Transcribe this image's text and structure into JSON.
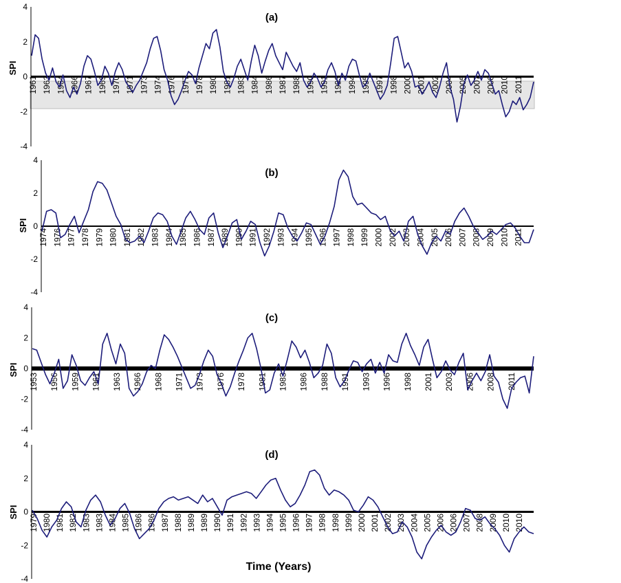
{
  "figure": {
    "xlabel": "Time (Years)"
  },
  "chart_data": [
    {
      "type": "line",
      "title": "(a)",
      "ylabel": "SPI",
      "ylim": [
        -4,
        4
      ],
      "yticks": [
        "4",
        "2",
        "0",
        "-2",
        "-4"
      ],
      "year_labels": [
        "1961",
        "1963",
        "1964",
        "1966",
        "1967",
        "1969",
        "1970",
        "1971",
        "1973",
        "1974",
        "1976",
        "1977",
        "1978",
        "1980",
        "1981",
        "1983",
        "1984",
        "1986",
        "1987",
        "1988",
        "1990",
        "1991",
        "1993",
        "1994",
        "1995",
        "1997",
        "1998",
        "2000",
        "2001",
        "2002",
        "2004",
        "2005",
        "2007",
        "2008",
        "2010",
        "2011"
      ],
      "line_color": "#1c1c7a",
      "values": [
        1.2,
        2.4,
        2.2,
        1.0,
        0.2,
        -0.2,
        0.5,
        -0.3,
        -0.6,
        0.1,
        -0.8,
        -1.2,
        -0.6,
        -1.0,
        -0.4,
        0.6,
        1.2,
        1.0,
        0.3,
        -0.5,
        -0.2,
        0.6,
        0.2,
        -0.5,
        0.3,
        0.8,
        0.4,
        -0.3,
        -0.6,
        -0.9,
        -0.5,
        -0.2,
        0.3,
        0.8,
        1.6,
        2.2,
        2.3,
        1.5,
        0.4,
        -0.2,
        -1.1,
        -1.6,
        -1.3,
        -0.8,
        -0.2,
        0.3,
        0.1,
        -0.4,
        0.5,
        1.2,
        1.9,
        1.6,
        2.5,
        2.7,
        1.7,
        0.3,
        -0.3,
        -0.6,
        -0.1,
        0.6,
        1.0,
        0.4,
        -0.2,
        0.9,
        1.8,
        1.2,
        0.2,
        0.9,
        1.5,
        1.9,
        1.2,
        0.8,
        0.4,
        1.4,
        1.0,
        0.6,
        0.3,
        0.8,
        -0.2,
        -0.6,
        -0.3,
        0.2,
        -0.1,
        -0.6,
        -0.3,
        0.4,
        0.8,
        0.3,
        -0.5,
        0.2,
        -0.2,
        0.6,
        1.0,
        0.9,
        0.1,
        -0.6,
        -0.4,
        0.2,
        -0.3,
        -0.8,
        -1.3,
        -1.0,
        -0.5,
        0.8,
        2.2,
        2.3,
        1.4,
        0.5,
        0.8,
        0.3,
        -0.6,
        -0.5,
        -1.0,
        -0.7,
        -0.3,
        -0.9,
        -1.2,
        -0.6,
        0.2,
        0.8,
        -0.6,
        -1.3,
        -2.6,
        -1.7,
        -0.4,
        0.1,
        -0.5,
        -0.2,
        0.3,
        -0.2,
        0.4,
        0.2,
        -0.4,
        -1.0,
        -0.8,
        -1.6,
        -2.3,
        -2.0,
        -1.4,
        -1.6,
        -1.2,
        -1.9,
        -1.6,
        -1.2,
        -0.3
      ]
    },
    {
      "type": "line",
      "title": "(b)",
      "ylabel": "SPI",
      "ylim": [
        -4,
        4
      ],
      "yticks": [
        "4",
        "2",
        "0",
        "-2",
        "-4"
      ],
      "year_labels": [
        "1974",
        "1976",
        "1977",
        "1978",
        "1979",
        "1980",
        "1981",
        "1982",
        "1983",
        "1984",
        "1985",
        "1986",
        "1987",
        "1989",
        "1990",
        "1991",
        "1992",
        "1993",
        "1994",
        "1995",
        "1996",
        "1997",
        "1998",
        "1999",
        "2000",
        "2002",
        "2003",
        "2004",
        "2005",
        "2006",
        "2007",
        "2008",
        "2009",
        "2010",
        "2011"
      ],
      "line_color": "#1c1c7a",
      "values": [
        -0.3,
        0.9,
        1.0,
        0.8,
        -0.7,
        -0.5,
        0.1,
        0.6,
        -0.4,
        0.3,
        1.0,
        2.1,
        2.7,
        2.6,
        2.2,
        1.4,
        0.6,
        0.1,
        -0.8,
        -1.0,
        -0.9,
        -0.6,
        -1.0,
        -0.3,
        0.5,
        0.8,
        0.7,
        0.3,
        -0.6,
        -1.1,
        -0.3,
        0.5,
        0.9,
        0.4,
        -0.2,
        -0.5,
        0.5,
        0.8,
        -0.4,
        -1.3,
        -0.6,
        0.2,
        0.4,
        -0.8,
        -0.3,
        0.3,
        0.1,
        -1.0,
        -1.8,
        -1.2,
        -0.3,
        0.8,
        0.7,
        -0.1,
        -0.6,
        -0.9,
        -0.4,
        0.2,
        0.1,
        -0.5,
        -1.1,
        -0.6,
        0.2,
        1.2,
        2.8,
        3.4,
        3.0,
        1.8,
        1.3,
        1.4,
        1.1,
        0.8,
        0.7,
        0.4,
        0.6,
        -0.2,
        -0.6,
        -0.3,
        -0.9,
        0.3,
        0.6,
        -0.5,
        -1.2,
        -1.7,
        -1.0,
        -0.6,
        -0.9,
        -0.3,
        -0.5,
        0.3,
        0.8,
        1.1,
        0.6,
        0.0,
        -0.4,
        -0.8,
        -0.6,
        -0.3,
        -0.5,
        -0.2,
        0.1,
        0.2,
        -0.1,
        -0.6,
        -1.0,
        -1.0,
        -0.2
      ]
    },
    {
      "type": "line",
      "title": "(c)",
      "ylabel": "SPI",
      "ylim": [
        -4,
        4
      ],
      "yticks": [
        "4",
        "2",
        "0",
        "-2",
        "-4"
      ],
      "year_labels": [
        "1953",
        "1956",
        "1959",
        "1961",
        "1963",
        "1966",
        "1968",
        "1971",
        "1973",
        "1976",
        "1978",
        "1981",
        "1983",
        "1986",
        "1988",
        "1991",
        "1993",
        "1996",
        "1998",
        "2001",
        "2003",
        "2006",
        "2008",
        "2011"
      ],
      "line_color": "#1c1c7a",
      "values": [
        1.3,
        1.2,
        0.4,
        -0.4,
        -1.0,
        -0.3,
        0.6,
        -1.3,
        -0.8,
        0.9,
        0.2,
        -0.8,
        -1.1,
        -0.6,
        -0.2,
        -1.0,
        1.6,
        2.3,
        1.2,
        0.3,
        1.6,
        1.0,
        -1.3,
        -1.8,
        -1.5,
        -1.0,
        -0.2,
        0.2,
        0.0,
        1.2,
        2.2,
        1.9,
        1.4,
        0.8,
        0.1,
        -0.6,
        -1.3,
        -1.1,
        -0.4,
        0.5,
        1.2,
        0.8,
        -0.4,
        -1.0,
        -1.8,
        -1.2,
        -0.3,
        0.5,
        1.2,
        2.0,
        2.3,
        1.3,
        0.0,
        -1.6,
        -1.4,
        -0.3,
        0.3,
        -0.5,
        0.6,
        1.8,
        1.4,
        0.7,
        1.2,
        0.4,
        -0.6,
        -0.3,
        0.2,
        1.6,
        1.0,
        -0.6,
        -1.2,
        -0.8,
        -0.1,
        0.5,
        0.4,
        -0.2,
        0.3,
        0.6,
        -0.3,
        0.4,
        -0.3,
        0.9,
        0.5,
        0.4,
        1.6,
        2.3,
        1.5,
        0.9,
        0.2,
        1.4,
        1.9,
        0.6,
        -0.6,
        -0.2,
        0.5,
        -0.1,
        -0.4,
        0.4,
        1.0,
        -1.4,
        -0.8,
        -0.3,
        -0.8,
        -0.2,
        0.9,
        -0.5,
        -0.9,
        -2.0,
        -2.6,
        -1.3,
        -0.9,
        -0.6,
        -0.5,
        -1.6,
        0.8
      ]
    },
    {
      "type": "line",
      "title": "(d)",
      "ylabel": "SPI",
      "xlabel": "Time (Years)",
      "ylim": [
        -4,
        4
      ],
      "yticks": [
        "4",
        "2",
        "0",
        "-2",
        "-4"
      ],
      "year_labels": [
        "1979",
        "1980",
        "1981",
        "1982",
        "1983",
        "1983",
        "1984",
        "1985",
        "1986",
        "1986",
        "1987",
        "1988",
        "1989",
        "1989",
        "1990",
        "1991",
        "1992",
        "1993",
        "1994",
        "1995",
        "1996",
        "1997",
        "1998",
        "1998",
        "1999",
        "2000",
        "2001",
        "2002",
        "2003",
        "2004",
        "2005",
        "2006",
        "2006",
        "2007",
        "2008",
        "2009",
        "2010",
        "2010"
      ],
      "line_color": "#1c1c7a",
      "values": [
        0.1,
        -0.4,
        -1.1,
        -1.5,
        -0.9,
        -0.5,
        0.2,
        0.6,
        0.3,
        -0.6,
        -0.9,
        0.1,
        0.7,
        1.0,
        0.6,
        -0.2,
        -0.8,
        -0.4,
        0.2,
        0.5,
        -0.1,
        -1.0,
        -1.6,
        -1.3,
        -1.0,
        -0.5,
        0.2,
        0.6,
        0.8,
        0.9,
        0.7,
        0.8,
        0.9,
        0.7,
        0.5,
        1.0,
        0.6,
        0.8,
        0.3,
        -0.2,
        0.7,
        0.9,
        1.0,
        1.1,
        1.2,
        1.1,
        0.8,
        1.2,
        1.6,
        1.9,
        2.0,
        1.3,
        0.7,
        0.3,
        0.5,
        1.0,
        1.6,
        2.4,
        2.5,
        2.2,
        1.4,
        1.0,
        1.3,
        1.2,
        1.0,
        0.7,
        0.1,
        0.0,
        0.4,
        0.9,
        0.7,
        0.3,
        -0.3,
        -0.9,
        -1.3,
        -1.2,
        -0.6,
        -0.9,
        -1.5,
        -2.4,
        -2.8,
        -2.0,
        -1.5,
        -1.1,
        -0.8,
        -1.2,
        -1.4,
        -1.2,
        -0.6,
        0.2,
        0.1,
        -0.4,
        -0.5,
        -0.3,
        -0.7,
        -1.0,
        -1.4,
        -2.0,
        -2.4,
        -1.6,
        -1.2,
        -0.9,
        -1.2,
        -1.3
      ]
    }
  ]
}
